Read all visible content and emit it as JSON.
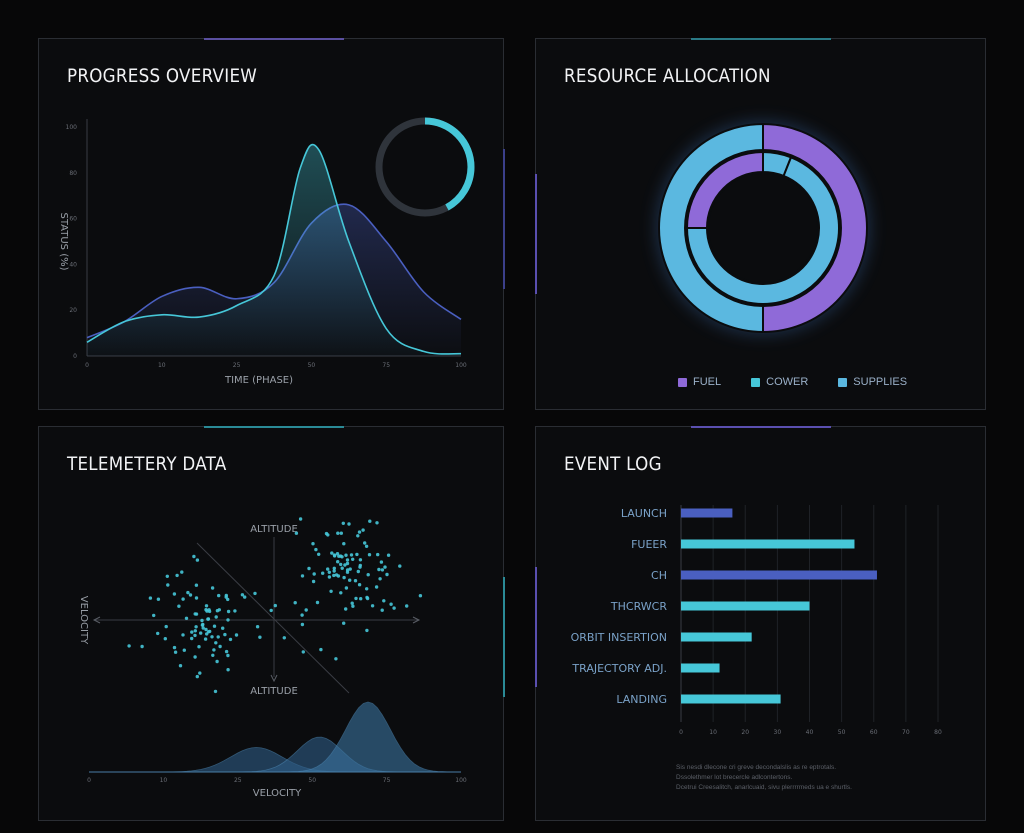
{
  "colors": {
    "background": "#070708",
    "teal": "#46c7d8",
    "blue": "#4a5fc0",
    "purple": "#8f6ad8",
    "light_blue": "#5bb8e0"
  },
  "panels": {
    "progress": {
      "title": "PROGRESS OVERVIEW"
    },
    "resource": {
      "title": "RESOURCE ALLOCATION"
    },
    "telemetry": {
      "title": "TELEMETERY DATA"
    },
    "event": {
      "title": "EVENT LOG"
    }
  },
  "chart_data": [
    {
      "type": "area",
      "title": "PROGRESS OVERVIEW",
      "xlabel": "TIME (PHASE)",
      "ylabel": "STATUS (%)",
      "xlim": [
        0,
        100
      ],
      "ylim": [
        0,
        100
      ],
      "x_ticks": [
        "0",
        "10",
        "25",
        "50",
        "75",
        "100"
      ],
      "y_ticks": [
        "0",
        "20",
        "40",
        "60",
        "80",
        "100"
      ],
      "series": [
        {
          "color": "#46c7d8",
          "x": [
            0,
            10,
            20,
            30,
            40,
            50,
            57,
            62,
            70,
            80,
            90,
            100
          ],
          "y": [
            6,
            15,
            18,
            17,
            22,
            35,
            82,
            90,
            50,
            12,
            2,
            1
          ]
        },
        {
          "color": "#4a5fc0",
          "x": [
            0,
            10,
            20,
            30,
            40,
            50,
            60,
            70,
            80,
            90,
            100
          ],
          "y": [
            8,
            15,
            26,
            30,
            25,
            32,
            58,
            66,
            50,
            28,
            16
          ]
        }
      ],
      "progress_ring": {
        "value": 0.42,
        "color": "#46c7d8"
      }
    },
    {
      "type": "pie",
      "title": "RESOURCE ALLOCATION",
      "legend": [
        {
          "name": "FUEL",
          "color": "#8f6ad8"
        },
        {
          "name": "COWER",
          "color": "#46c7d8"
        },
        {
          "name": "SUPPLIES",
          "color": "#5bb8e0"
        }
      ],
      "outer_ring": [
        {
          "name": "FUEL",
          "value": 50,
          "color": "#8f6ad8"
        },
        {
          "name": "SUPPLIES",
          "value": 50,
          "color": "#5bb8e0"
        }
      ],
      "inner_ring": [
        {
          "name": "COWER",
          "value": 6,
          "color": "#5bb8e0"
        },
        {
          "name": "SUPPLIES",
          "value": 69,
          "color": "#5bb8e0"
        },
        {
          "name": "FUEL",
          "value": 25,
          "color": "#8f6ad8"
        }
      ]
    },
    {
      "type": "scatter",
      "title": "TELEMETERY DATA",
      "xlabel": "VELOCITY",
      "ylabel": "ALTITUDE",
      "axis_label_top": "ALTITUDE",
      "axis_label_left": "VELOCITY",
      "x_ticks": [
        "0",
        "10",
        "25",
        "50",
        "75",
        "100"
      ],
      "point_color": "#46c7d8",
      "cluster_left": {
        "center": [
          -0.5,
          0
        ],
        "spread": [
          0.45,
          0.45
        ],
        "count": 90
      },
      "cluster_right": {
        "center": [
          0.55,
          0.35
        ],
        "spread": [
          0.4,
          0.45
        ],
        "count": 100
      },
      "density": [
        {
          "color": "#2e5c86",
          "center": 45,
          "width": 7,
          "height": 0.35
        },
        {
          "color": "#2e5c86",
          "center": 62,
          "width": 6,
          "height": 0.5
        },
        {
          "color": "#3b74a0",
          "center": 75,
          "width": 6,
          "height": 1.0
        }
      ]
    },
    {
      "type": "bar",
      "title": "EVENT LOG",
      "orientation": "horizontal",
      "categories": [
        "LAUNCH",
        "FUEER",
        "CH",
        "THCRWCR",
        "ORBIT INSERTION",
        "TRAJECTORY ADJ.",
        "LANDING"
      ],
      "values": [
        16,
        54,
        61,
        40,
        22,
        12,
        31
      ],
      "colors": [
        "#4a5fc0",
        "#46c7d8",
        "#4a5fc0",
        "#46c7d8",
        "#46c7d8",
        "#46c7d8",
        "#46c7d8"
      ],
      "xlim": [
        0,
        80
      ],
      "x_ticks": [
        "0",
        "10",
        "20",
        "30",
        "40",
        "50",
        "60",
        "70",
        "80"
      ],
      "footnote": [
        "Sis nesdi dlecone cri greve decondalslis as re eptrotals.",
        "Dssolethmer lot brecercle adlcontertons.",
        "Dcetrui Creesalitch, anarlcuaid, sivu plerrrrmeds ua e shurtls."
      ]
    }
  ]
}
